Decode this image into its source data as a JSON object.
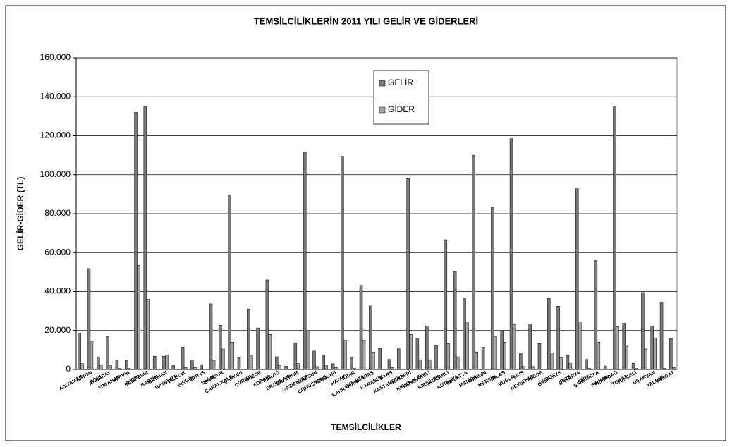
{
  "chart_data": {
    "type": "bar",
    "title": "TEMSİLCİLİKLERİN 2011 YILI GELİR VE GİDERLERİ",
    "x_label": "TEMSİLCİLİKLER",
    "y_label": "GELİR-GİDER   (TL)",
    "categories": [
      "ADIYAMAN",
      "AFYON",
      "AĞRI",
      "AKSARAY",
      "ARDAHAN",
      "ARTVİN",
      "AYDIN",
      "BALIKESİR",
      "BARTIN",
      "BATMAN",
      "BAYBURT",
      "BİLECİK",
      "BİNGÖL",
      "BİTLİS",
      "BOLU",
      "BURDUR",
      "ÇANAKKALE",
      "ÇANKIRI",
      "ÇORUM",
      "DÜZCE",
      "EDİRNE",
      "ELAZIĞ",
      "ERZİNCAN",
      "ERZURUM",
      "GAZİANTEP",
      "GİRESUN",
      "GÜMÜŞHANE",
      "HAKKARİ",
      "HATAY",
      "IĞDIR",
      "ISPARTA",
      "KAHRAMANMARAŞ",
      "KARABÜK",
      "KARS",
      "KASTAMONU",
      "KAYSERİ",
      "KIRIKKALE",
      "KIRKLARELİ",
      "KIRŞEHİR",
      "KOCAELİ",
      "KÜTAHYA",
      "MALATYA",
      "MANİSA",
      "MARDİN",
      "MERSİN",
      "MİLAS",
      "MUĞLA",
      "MUŞ",
      "NEVŞEHİR",
      "NİĞDE",
      "ORDU",
      "OSMANİYE",
      "RİZE",
      "SAKARYA",
      "SİİRT",
      "ŞANLIURFA",
      "ŞIRNAK",
      "TEKİRDAĞ",
      "TOKAT",
      "TUNCELİ",
      "UŞAK",
      "VAN",
      "YALOVA",
      "YOZGAT"
    ],
    "series": [
      {
        "name": "GELİR",
        "color": "#7a7a7a",
        "values": [
          18700,
          51800,
          6500,
          17000,
          4500,
          4700,
          132000,
          135000,
          6800,
          6800,
          2300,
          11500,
          4500,
          2500,
          33700,
          22700,
          89500,
          6000,
          31000,
          21300,
          46000,
          6500,
          1700,
          13700,
          111500,
          9500,
          7300,
          3000,
          109500,
          6000,
          43200,
          32600,
          10800,
          5200,
          10600,
          98000,
          15700,
          22300,
          12300,
          66600,
          50300,
          36400,
          110000,
          11500,
          83300,
          20000,
          118500,
          8500,
          23000,
          13300,
          36500,
          32500,
          7200,
          92800,
          5200,
          55900,
          1800,
          134800,
          23700,
          3200,
          39500,
          22300,
          34700,
          15800
        ]
      },
      {
        "name": "GİDER",
        "color": "#a6a6a6",
        "values": [
          3000,
          14500,
          2000,
          2000,
          500,
          500,
          53500,
          36000,
          0,
          7500,
          0,
          1000,
          1000,
          0,
          4500,
          10500,
          14000,
          0,
          7000,
          0,
          18000,
          2000,
          0,
          3000,
          20000,
          1500,
          2000,
          1000,
          15000,
          500,
          15000,
          9000,
          0,
          1000,
          0,
          18000,
          5000,
          5000,
          0,
          13300,
          6500,
          24500,
          9000,
          0,
          17000,
          14000,
          23000,
          1500,
          1500,
          0,
          8500,
          6000,
          3000,
          24500,
          500,
          14000,
          0,
          22000,
          12000,
          500,
          10500,
          16000,
          500,
          1000
        ]
      }
    ],
    "ylim": [
      0,
      160000
    ],
    "yticks": [
      0,
      {
        "value": 20000,
        "label": "20.000"
      },
      {
        "value": 40000,
        "label": "40.000"
      },
      {
        "value": 60000,
        "label": "60.000"
      },
      {
        "value": 80000,
        "label": "80.000"
      },
      {
        "value": 100000,
        "label": "100.000"
      },
      {
        "value": 120000,
        "label": "120.000"
      },
      {
        "value": 140000,
        "label": "140.000"
      },
      {
        "value": 160000,
        "label": "160.000"
      }
    ],
    "grid": true,
    "legend": "top"
  }
}
